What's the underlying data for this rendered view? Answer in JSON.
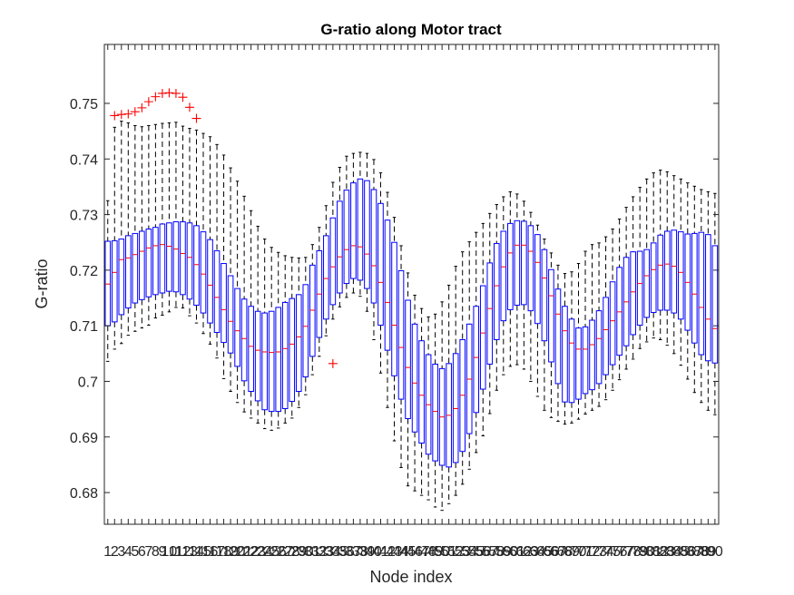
{
  "chart_data": {
    "type": "boxplot",
    "title": "G-ratio along Motor tract",
    "xlabel": "Node index",
    "ylabel": "G-ratio",
    "ylim": [
      0.6743,
      0.7606
    ],
    "yticks": [
      0.68,
      0.69,
      0.7,
      0.71,
      0.72,
      0.73,
      0.74,
      0.75
    ],
    "ytick_labels": [
      "0.68",
      "0.69",
      "0.7",
      "0.71",
      "0.72",
      "0.73",
      "0.74",
      "0.75"
    ],
    "categories": [
      "1",
      "2",
      "3",
      "4",
      "5",
      "6",
      "7",
      "8",
      "9",
      "10",
      "11",
      "12",
      "13",
      "14",
      "15",
      "16",
      "17",
      "18",
      "19",
      "20",
      "21",
      "22",
      "23",
      "24",
      "25",
      "26",
      "27",
      "28",
      "29",
      "30",
      "31",
      "32",
      "33",
      "34",
      "35",
      "36",
      "37",
      "38",
      "39",
      "40",
      "41",
      "42",
      "43",
      "44",
      "45",
      "46",
      "47",
      "48",
      "49",
      "50",
      "51",
      "52",
      "53",
      "54",
      "55",
      "56",
      "57",
      "58",
      "59",
      "60",
      "61",
      "62",
      "63",
      "64",
      "65",
      "66",
      "67",
      "68",
      "69",
      "70",
      "71",
      "72",
      "73",
      "74",
      "75",
      "76",
      "77",
      "78",
      "79",
      "80",
      "81",
      "82",
      "83",
      "84",
      "85",
      "86",
      "87",
      "88",
      "89",
      "90"
    ],
    "stats": {
      "median": [
        0.7175,
        0.7196,
        0.7219,
        0.7222,
        0.7228,
        0.7234,
        0.724,
        0.7244,
        0.7246,
        0.7243,
        0.7238,
        0.723,
        0.7223,
        0.721,
        0.7193,
        0.7173,
        0.7151,
        0.7129,
        0.7108,
        0.7091,
        0.7077,
        0.7063,
        0.7056,
        0.7053,
        0.7052,
        0.7053,
        0.7059,
        0.7067,
        0.708,
        0.7099,
        0.7128,
        0.7157,
        0.7185,
        0.7206,
        0.7224,
        0.7237,
        0.7244,
        0.7242,
        0.7229,
        0.7208,
        0.7178,
        0.7142,
        0.7101,
        0.7061,
        0.7025,
        0.6997,
        0.6975,
        0.6958,
        0.6946,
        0.6936,
        0.6939,
        0.6951,
        0.6975,
        0.7004,
        0.7043,
        0.7087,
        0.7131,
        0.7172,
        0.7206,
        0.7231,
        0.7245,
        0.7245,
        0.7234,
        0.7214,
        0.7186,
        0.7154,
        0.7121,
        0.7091,
        0.7069,
        0.7058,
        0.7058,
        0.7066,
        0.7077,
        0.7093,
        0.7109,
        0.7125,
        0.7143,
        0.7161,
        0.7176,
        0.719,
        0.7201,
        0.7209,
        0.7211,
        0.7207,
        0.7196,
        0.7178,
        0.7157,
        0.7133,
        0.7112,
        0.7095
      ],
      "q1": [
        0.71,
        0.7107,
        0.712,
        0.7132,
        0.7141,
        0.7147,
        0.7152,
        0.7156,
        0.7159,
        0.7162,
        0.7161,
        0.7156,
        0.7148,
        0.7137,
        0.7123,
        0.7105,
        0.7088,
        0.707,
        0.7051,
        0.7027,
        0.7001,
        0.6982,
        0.6965,
        0.6949,
        0.6946,
        0.6946,
        0.6951,
        0.6964,
        0.6982,
        0.7008,
        0.7045,
        0.7079,
        0.7112,
        0.7138,
        0.7159,
        0.7176,
        0.7185,
        0.7182,
        0.7167,
        0.7141,
        0.7101,
        0.7056,
        0.701,
        0.6968,
        0.6933,
        0.6909,
        0.6889,
        0.6869,
        0.6857,
        0.6849,
        0.6846,
        0.6854,
        0.6874,
        0.6906,
        0.6944,
        0.6986,
        0.7031,
        0.7075,
        0.7109,
        0.7129,
        0.7137,
        0.7138,
        0.7127,
        0.7104,
        0.7073,
        0.7035,
        0.6996,
        0.6963,
        0.6962,
        0.6968,
        0.6978,
        0.6985,
        0.6996,
        0.7012,
        0.703,
        0.7047,
        0.7064,
        0.7084,
        0.7101,
        0.7115,
        0.7124,
        0.7128,
        0.7128,
        0.7123,
        0.7112,
        0.7092,
        0.7069,
        0.7048,
        0.7037,
        0.7033
      ],
      "q3": [
        0.7252,
        0.7253,
        0.7256,
        0.7262,
        0.7266,
        0.727,
        0.7274,
        0.7277,
        0.7283,
        0.7285,
        0.7287,
        0.7287,
        0.7285,
        0.728,
        0.7269,
        0.7255,
        0.7235,
        0.7212,
        0.719,
        0.7167,
        0.7148,
        0.7135,
        0.7126,
        0.7123,
        0.7126,
        0.7133,
        0.7142,
        0.7149,
        0.7156,
        0.7174,
        0.7209,
        0.7235,
        0.7262,
        0.7294,
        0.7324,
        0.7344,
        0.7357,
        0.7364,
        0.7361,
        0.7345,
        0.732,
        0.729,
        0.725,
        0.7199,
        0.7146,
        0.7103,
        0.7073,
        0.7048,
        0.7031,
        0.7023,
        0.7032,
        0.705,
        0.7075,
        0.7103,
        0.7135,
        0.7172,
        0.7213,
        0.7248,
        0.727,
        0.7284,
        0.7289,
        0.7288,
        0.728,
        0.7264,
        0.7237,
        0.7201,
        0.7166,
        0.7135,
        0.7112,
        0.7096,
        0.7098,
        0.711,
        0.7127,
        0.7151,
        0.7179,
        0.7205,
        0.7223,
        0.7233,
        0.7234,
        0.7237,
        0.7249,
        0.7263,
        0.727,
        0.7272,
        0.7269,
        0.7265,
        0.7266,
        0.7268,
        0.7264,
        0.7244
      ],
      "whisker_low": [
        0.7036,
        0.7058,
        0.7068,
        0.7083,
        0.709,
        0.7096,
        0.7101,
        0.7114,
        0.7119,
        0.7125,
        0.7133,
        0.7132,
        0.7118,
        0.7105,
        0.7086,
        0.7067,
        0.7042,
        0.7005,
        0.6982,
        0.6962,
        0.6945,
        0.6934,
        0.6925,
        0.6915,
        0.6912,
        0.6916,
        0.6925,
        0.6934,
        0.6953,
        0.6976,
        0.7012,
        0.7045,
        0.7082,
        0.7112,
        0.7134,
        0.7151,
        0.7159,
        0.7153,
        0.7126,
        0.7075,
        0.7015,
        0.6953,
        0.6893,
        0.6845,
        0.6812,
        0.6803,
        0.6795,
        0.6787,
        0.6774,
        0.6768,
        0.678,
        0.6795,
        0.6815,
        0.6842,
        0.6872,
        0.6902,
        0.6942,
        0.6984,
        0.7012,
        0.7027,
        0.703,
        0.7022,
        0.7,
        0.6973,
        0.6948,
        0.6935,
        0.6928,
        0.6923,
        0.6925,
        0.6932,
        0.6941,
        0.6948,
        0.6955,
        0.6967,
        0.6984,
        0.7003,
        0.7022,
        0.704,
        0.7059,
        0.7071,
        0.7078,
        0.7075,
        0.7065,
        0.705,
        0.7029,
        0.7004,
        0.698,
        0.6962,
        0.6948,
        0.694
      ],
      "whisker_high": [
        0.7325,
        0.7457,
        0.7468,
        0.7465,
        0.746,
        0.7458,
        0.746,
        0.7462,
        0.7464,
        0.7465,
        0.7466,
        0.7459,
        0.7455,
        0.7452,
        0.7446,
        0.744,
        0.7426,
        0.7407,
        0.7384,
        0.736,
        0.7333,
        0.7307,
        0.7279,
        0.7256,
        0.7241,
        0.7232,
        0.7226,
        0.7223,
        0.7222,
        0.7223,
        0.7246,
        0.7277,
        0.7316,
        0.7358,
        0.7385,
        0.7405,
        0.741,
        0.7412,
        0.741,
        0.7399,
        0.7375,
        0.734,
        0.7295,
        0.7244,
        0.7195,
        0.7155,
        0.7131,
        0.7116,
        0.7121,
        0.7143,
        0.7173,
        0.7207,
        0.7233,
        0.7251,
        0.7268,
        0.7284,
        0.7302,
        0.7318,
        0.7332,
        0.7341,
        0.7337,
        0.7324,
        0.7304,
        0.7281,
        0.7256,
        0.7231,
        0.7209,
        0.7194,
        0.7197,
        0.7212,
        0.7234,
        0.7246,
        0.7249,
        0.726,
        0.7274,
        0.7292,
        0.7313,
        0.7332,
        0.7349,
        0.7364,
        0.7375,
        0.738,
        0.7377,
        0.737,
        0.7364,
        0.7357,
        0.7351,
        0.7345,
        0.7341,
        0.7338
      ]
    },
    "outliers": [
      {
        "x": 2,
        "y": 0.7478
      },
      {
        "x": 3,
        "y": 0.748
      },
      {
        "x": 4,
        "y": 0.7481
      },
      {
        "x": 5,
        "y": 0.7485
      },
      {
        "x": 6,
        "y": 0.7492
      },
      {
        "x": 7,
        "y": 0.7503
      },
      {
        "x": 8,
        "y": 0.7512
      },
      {
        "x": 9,
        "y": 0.7518
      },
      {
        "x": 10,
        "y": 0.7519
      },
      {
        "x": 11,
        "y": 0.7518
      },
      {
        "x": 12,
        "y": 0.7511
      },
      {
        "x": 13,
        "y": 0.7493
      },
      {
        "x": 14,
        "y": 0.7473
      },
      {
        "x": 34,
        "y": 0.7032
      }
    ],
    "colors": {
      "box": "#0000ff",
      "median": "#ff0000",
      "whisker": "#000000",
      "outlier": "#ff0000"
    },
    "grid": false,
    "legend": "none"
  }
}
